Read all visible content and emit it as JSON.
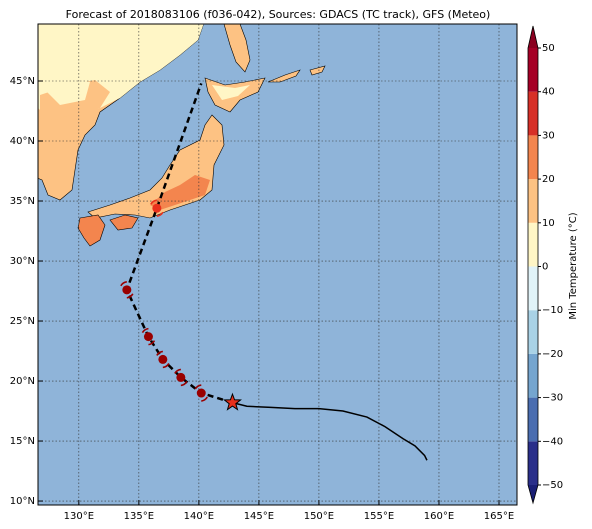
{
  "map": {
    "title": "Forecast of 2018083106 (f036-042), Sources: GDACS (TC track), GFS (Meteo)",
    "lonlim": [
      126.6,
      166.5
    ],
    "latlim": [
      9.67,
      49.75
    ],
    "ocean_color": "#8fb4d9",
    "lonticks": [
      {
        "value": 130,
        "label": "130°E"
      },
      {
        "value": 135,
        "label": "135°E"
      },
      {
        "value": 140,
        "label": "140°E"
      },
      {
        "value": 145,
        "label": "145°E"
      },
      {
        "value": 150,
        "label": "150°E"
      },
      {
        "value": 155,
        "label": "155°E"
      },
      {
        "value": 160,
        "label": "160°E"
      },
      {
        "value": 165,
        "label": "165°E"
      }
    ],
    "latticks": [
      {
        "value": 10,
        "label": "10°N"
      },
      {
        "value": 15,
        "label": "15°N"
      },
      {
        "value": 20,
        "label": "20°N"
      },
      {
        "value": 25,
        "label": "25°N"
      },
      {
        "value": 30,
        "label": "30°N"
      },
      {
        "value": 35,
        "label": "35°N"
      },
      {
        "value": 40,
        "label": "40°N"
      },
      {
        "value": 45,
        "label": "45°N"
      }
    ],
    "forecast_track": {
      "lon": [
        142.8,
        140.2,
        138.5,
        137,
        135.8,
        134,
        136.5,
        140.2
      ],
      "lat": [
        18.2,
        19.0,
        20.3,
        21.8,
        23.7,
        27.6,
        34.4,
        44.8
      ]
    },
    "storm_points": {
      "lon": [
        140.2,
        138.5,
        137,
        135.8,
        134,
        136.5
      ],
      "lat": [
        19.0,
        20.3,
        21.8,
        23.7,
        27.6,
        34.4
      ],
      "colors": [
        "#990000",
        "#990000",
        "#990000",
        "#990000",
        "#990000",
        "#e8301c"
      ]
    },
    "past_track": {
      "lon": [
        159,
        158.8,
        158,
        157,
        155.5,
        154,
        152,
        150,
        148,
        146,
        144,
        142.8
      ],
      "lat": [
        13.4,
        13.8,
        14.6,
        15.2,
        16.2,
        17.0,
        17.5,
        17.7,
        17.7,
        17.8,
        17.9,
        18.2
      ]
    },
    "current_position": {
      "lon": 142.8,
      "lat": 18.2
    }
  },
  "colorbar": {
    "label": "Min Temperature (°C)",
    "clim": [
      -50,
      50
    ],
    "ticks": [
      {
        "value": -50,
        "label": "−50"
      },
      {
        "value": -40,
        "label": "−40"
      },
      {
        "value": -30,
        "label": "−30"
      },
      {
        "value": -20,
        "label": "−20"
      },
      {
        "value": -10,
        "label": "−10"
      },
      0,
      10,
      20,
      30,
      40,
      50
    ],
    "colors": [
      "#2a2f8a",
      "#4a6db0",
      "#75a5cf",
      "#a9d2e6",
      "#e1f3f8",
      "#fff6c6",
      "#fdc283",
      "#f3854e",
      "#d73027",
      "#a50026"
    ],
    "under_color": "#1a1f75",
    "over_color": "#8a0020"
  }
}
